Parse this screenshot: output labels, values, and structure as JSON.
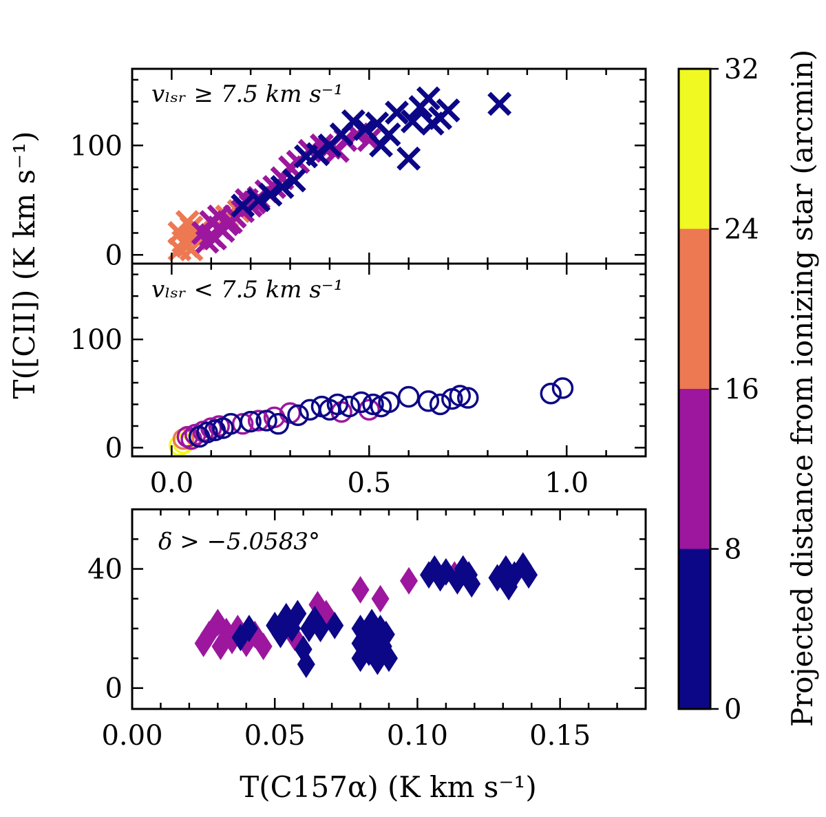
{
  "colors": {
    "bin_0_8": "#0c0786",
    "bin_8_16": "#9c179e",
    "bin_16_24": "#ed7953",
    "bin_24_32": "#f0f921",
    "axis": "#000000"
  },
  "figure": {
    "ylabel": "T([CII]) (K km s⁻¹)",
    "xlabel": "T(C157α) (K km s⁻¹)"
  },
  "colorbar": {
    "label": "Projected distance from ionizing star (arcmin)",
    "ticks": [
      "0",
      "8",
      "16",
      "24",
      "32"
    ],
    "boundaries": [
      0,
      8,
      16,
      24,
      32
    ]
  },
  "chart_data": [
    {
      "type": "scatter",
      "panel": "top",
      "annotation": "vₗₛᵣ ≥ 7.5 km s⁻¹",
      "marker": "x",
      "xlim": [
        -0.1,
        1.2
      ],
      "ylim": [
        -8,
        170
      ],
      "yticks": [
        0,
        100
      ],
      "xtick_labels_shown": false,
      "points": [
        {
          "x": 0.02,
          "y": 20,
          "d": 20
        },
        {
          "x": 0.03,
          "y": 12,
          "d": 20
        },
        {
          "x": 0.04,
          "y": 8,
          "d": 20
        },
        {
          "x": 0.05,
          "y": 25,
          "d": 20
        },
        {
          "x": 0.06,
          "y": 15,
          "d": 20
        },
        {
          "x": 0.04,
          "y": 30,
          "d": 20
        },
        {
          "x": 0.07,
          "y": 22,
          "d": 20
        },
        {
          "x": 0.05,
          "y": 5,
          "d": 20
        },
        {
          "x": 0.14,
          "y": 35,
          "d": 20
        },
        {
          "x": 0.17,
          "y": 40,
          "d": 20
        },
        {
          "x": 0.02,
          "y": 5,
          "d": 20
        },
        {
          "x": 0.08,
          "y": 20,
          "d": 12
        },
        {
          "x": 0.1,
          "y": 18,
          "d": 12
        },
        {
          "x": 0.12,
          "y": 25,
          "d": 12
        },
        {
          "x": 0.14,
          "y": 28,
          "d": 12
        },
        {
          "x": 0.16,
          "y": 35,
          "d": 12
        },
        {
          "x": 0.18,
          "y": 40,
          "d": 12
        },
        {
          "x": 0.2,
          "y": 45,
          "d": 12
        },
        {
          "x": 0.22,
          "y": 52,
          "d": 12
        },
        {
          "x": 0.24,
          "y": 58,
          "d": 12
        },
        {
          "x": 0.26,
          "y": 62,
          "d": 12
        },
        {
          "x": 0.28,
          "y": 70,
          "d": 12
        },
        {
          "x": 0.3,
          "y": 80,
          "d": 12
        },
        {
          "x": 0.32,
          "y": 85,
          "d": 12
        },
        {
          "x": 0.35,
          "y": 95,
          "d": 12
        },
        {
          "x": 0.38,
          "y": 100,
          "d": 12
        },
        {
          "x": 0.4,
          "y": 98,
          "d": 12
        },
        {
          "x": 0.42,
          "y": 95,
          "d": 12
        },
        {
          "x": 0.44,
          "y": 105,
          "d": 12
        },
        {
          "x": 0.47,
          "y": 110,
          "d": 12
        },
        {
          "x": 0.5,
          "y": 105,
          "d": 12
        },
        {
          "x": 0.12,
          "y": 35,
          "d": 12
        },
        {
          "x": 0.15,
          "y": 30,
          "d": 12
        },
        {
          "x": 0.19,
          "y": 50,
          "d": 12
        },
        {
          "x": 0.21,
          "y": 48,
          "d": 12
        },
        {
          "x": 0.1,
          "y": 30,
          "d": 12
        },
        {
          "x": 0.13,
          "y": 22,
          "d": 12
        },
        {
          "x": 0.09,
          "y": 12,
          "d": 12
        },
        {
          "x": 0.11,
          "y": 15,
          "d": 12
        },
        {
          "x": 0.18,
          "y": 45,
          "d": 4
        },
        {
          "x": 0.22,
          "y": 50,
          "d": 4
        },
        {
          "x": 0.25,
          "y": 55,
          "d": 4
        },
        {
          "x": 0.28,
          "y": 62,
          "d": 4
        },
        {
          "x": 0.31,
          "y": 68,
          "d": 4
        },
        {
          "x": 0.34,
          "y": 90,
          "d": 4
        },
        {
          "x": 0.37,
          "y": 92,
          "d": 4
        },
        {
          "x": 0.4,
          "y": 100,
          "d": 4
        },
        {
          "x": 0.43,
          "y": 110,
          "d": 4
        },
        {
          "x": 0.46,
          "y": 122,
          "d": 4
        },
        {
          "x": 0.49,
          "y": 115,
          "d": 4
        },
        {
          "x": 0.52,
          "y": 120,
          "d": 4
        },
        {
          "x": 0.53,
          "y": 100,
          "d": 4
        },
        {
          "x": 0.55,
          "y": 110,
          "d": 4
        },
        {
          "x": 0.57,
          "y": 130,
          "d": 4
        },
        {
          "x": 0.6,
          "y": 88,
          "d": 4
        },
        {
          "x": 0.61,
          "y": 122,
          "d": 4
        },
        {
          "x": 0.63,
          "y": 135,
          "d": 4
        },
        {
          "x": 0.65,
          "y": 143,
          "d": 4
        },
        {
          "x": 0.66,
          "y": 120,
          "d": 4
        },
        {
          "x": 0.68,
          "y": 125,
          "d": 4
        },
        {
          "x": 0.7,
          "y": 132,
          "d": 4
        },
        {
          "x": 0.83,
          "y": 138,
          "d": 4
        }
      ]
    },
    {
      "type": "scatter",
      "panel": "middle",
      "annotation": "vₗₛᵣ < 7.5 km s⁻¹",
      "marker": "o",
      "xlim": [
        -0.1,
        1.2
      ],
      "ylim": [
        -8,
        170
      ],
      "xticks": [
        0.0,
        0.5,
        1.0
      ],
      "xtick_labels": [
        "0.0",
        "0.5",
        "1.0"
      ],
      "yticks": [
        0,
        100
      ],
      "points": [
        {
          "x": 0.02,
          "y": 2,
          "d": 28
        },
        {
          "x": 0.03,
          "y": 4,
          "d": 28
        },
        {
          "x": 0.03,
          "y": 8,
          "d": 20
        },
        {
          "x": 0.04,
          "y": 10,
          "d": 12
        },
        {
          "x": 0.06,
          "y": 12,
          "d": 12
        },
        {
          "x": 0.08,
          "y": 15,
          "d": 12
        },
        {
          "x": 0.1,
          "y": 18,
          "d": 12
        },
        {
          "x": 0.05,
          "y": 8,
          "d": 12
        },
        {
          "x": 0.12,
          "y": 20,
          "d": 12
        },
        {
          "x": 0.18,
          "y": 22,
          "d": 12
        },
        {
          "x": 0.22,
          "y": 25,
          "d": 12
        },
        {
          "x": 0.26,
          "y": 28,
          "d": 12
        },
        {
          "x": 0.3,
          "y": 32,
          "d": 12
        },
        {
          "x": 0.43,
          "y": 33,
          "d": 12
        },
        {
          "x": 0.5,
          "y": 35,
          "d": 12
        },
        {
          "x": 0.07,
          "y": 10,
          "d": 4
        },
        {
          "x": 0.09,
          "y": 14,
          "d": 4
        },
        {
          "x": 0.11,
          "y": 16,
          "d": 4
        },
        {
          "x": 0.13,
          "y": 18,
          "d": 4
        },
        {
          "x": 0.15,
          "y": 22,
          "d": 4
        },
        {
          "x": 0.2,
          "y": 24,
          "d": 4
        },
        {
          "x": 0.24,
          "y": 25,
          "d": 4
        },
        {
          "x": 0.27,
          "y": 22,
          "d": 4
        },
        {
          "x": 0.32,
          "y": 30,
          "d": 4
        },
        {
          "x": 0.35,
          "y": 35,
          "d": 4
        },
        {
          "x": 0.38,
          "y": 38,
          "d": 4
        },
        {
          "x": 0.4,
          "y": 35,
          "d": 4
        },
        {
          "x": 0.42,
          "y": 40,
          "d": 4
        },
        {
          "x": 0.45,
          "y": 38,
          "d": 4
        },
        {
          "x": 0.48,
          "y": 42,
          "d": 4
        },
        {
          "x": 0.51,
          "y": 40,
          "d": 4
        },
        {
          "x": 0.53,
          "y": 38,
          "d": 4
        },
        {
          "x": 0.55,
          "y": 42,
          "d": 4
        },
        {
          "x": 0.6,
          "y": 47,
          "d": 4
        },
        {
          "x": 0.65,
          "y": 43,
          "d": 4
        },
        {
          "x": 0.68,
          "y": 40,
          "d": 4
        },
        {
          "x": 0.71,
          "y": 45,
          "d": 4
        },
        {
          "x": 0.73,
          "y": 48,
          "d": 4
        },
        {
          "x": 0.75,
          "y": 46,
          "d": 4
        },
        {
          "x": 0.96,
          "y": 50,
          "d": 4
        },
        {
          "x": 0.99,
          "y": 55,
          "d": 4
        }
      ]
    },
    {
      "type": "scatter",
      "panel": "bottom",
      "annotation": "δ > −5.0583°",
      "marker": "diamond",
      "xlim": [
        0.0,
        0.18
      ],
      "ylim": [
        -7,
        60
      ],
      "xticks": [
        0.0,
        0.05,
        0.1,
        0.15
      ],
      "xtick_labels": [
        "0.00",
        "0.05",
        "0.10",
        "0.15"
      ],
      "yticks": [
        0,
        40
      ],
      "points": [
        {
          "x": 0.025,
          "y": 15,
          "d": 12
        },
        {
          "x": 0.027,
          "y": 18,
          "d": 12
        },
        {
          "x": 0.03,
          "y": 22,
          "d": 12
        },
        {
          "x": 0.031,
          "y": 14,
          "d": 12
        },
        {
          "x": 0.033,
          "y": 19,
          "d": 12
        },
        {
          "x": 0.035,
          "y": 16,
          "d": 12
        },
        {
          "x": 0.037,
          "y": 20,
          "d": 12
        },
        {
          "x": 0.04,
          "y": 15,
          "d": 12
        },
        {
          "x": 0.043,
          "y": 18,
          "d": 12
        },
        {
          "x": 0.046,
          "y": 14,
          "d": 12
        },
        {
          "x": 0.057,
          "y": 17,
          "d": 12
        },
        {
          "x": 0.065,
          "y": 28,
          "d": 12
        },
        {
          "x": 0.068,
          "y": 25,
          "d": 12
        },
        {
          "x": 0.08,
          "y": 33,
          "d": 12
        },
        {
          "x": 0.087,
          "y": 30,
          "d": 12
        },
        {
          "x": 0.097,
          "y": 36,
          "d": 12
        },
        {
          "x": 0.113,
          "y": 38,
          "d": 12
        },
        {
          "x": 0.038,
          "y": 17,
          "d": 4
        },
        {
          "x": 0.041,
          "y": 20,
          "d": 4
        },
        {
          "x": 0.05,
          "y": 21,
          "d": 4
        },
        {
          "x": 0.052,
          "y": 18,
          "d": 4
        },
        {
          "x": 0.054,
          "y": 24,
          "d": 4
        },
        {
          "x": 0.056,
          "y": 20,
          "d": 4
        },
        {
          "x": 0.058,
          "y": 25,
          "d": 4
        },
        {
          "x": 0.06,
          "y": 13,
          "d": 4
        },
        {
          "x": 0.061,
          "y": 8,
          "d": 4
        },
        {
          "x": 0.062,
          "y": 20,
          "d": 4
        },
        {
          "x": 0.064,
          "y": 23,
          "d": 4
        },
        {
          "x": 0.066,
          "y": 20,
          "d": 4
        },
        {
          "x": 0.071,
          "y": 21,
          "d": 4
        },
        {
          "x": 0.08,
          "y": 20,
          "d": 4
        },
        {
          "x": 0.08,
          "y": 15,
          "d": 4
        },
        {
          "x": 0.08,
          "y": 10,
          "d": 4
        },
        {
          "x": 0.082,
          "y": 18,
          "d": 4
        },
        {
          "x": 0.083,
          "y": 12,
          "d": 4
        },
        {
          "x": 0.084,
          "y": 22,
          "d": 4
        },
        {
          "x": 0.085,
          "y": 16,
          "d": 4
        },
        {
          "x": 0.086,
          "y": 9,
          "d": 4
        },
        {
          "x": 0.087,
          "y": 20,
          "d": 4
        },
        {
          "x": 0.088,
          "y": 14,
          "d": 4
        },
        {
          "x": 0.089,
          "y": 18,
          "d": 4
        },
        {
          "x": 0.09,
          "y": 10,
          "d": 4
        },
        {
          "x": 0.104,
          "y": 38,
          "d": 4
        },
        {
          "x": 0.106,
          "y": 40,
          "d": 4
        },
        {
          "x": 0.108,
          "y": 37,
          "d": 4
        },
        {
          "x": 0.11,
          "y": 39,
          "d": 4
        },
        {
          "x": 0.114,
          "y": 36,
          "d": 4
        },
        {
          "x": 0.116,
          "y": 40,
          "d": 4
        },
        {
          "x": 0.118,
          "y": 38,
          "d": 4
        },
        {
          "x": 0.119,
          "y": 35,
          "d": 4
        },
        {
          "x": 0.128,
          "y": 37,
          "d": 4
        },
        {
          "x": 0.131,
          "y": 40,
          "d": 4
        },
        {
          "x": 0.132,
          "y": 34,
          "d": 4
        },
        {
          "x": 0.134,
          "y": 38,
          "d": 4
        },
        {
          "x": 0.137,
          "y": 41,
          "d": 4
        },
        {
          "x": 0.139,
          "y": 38,
          "d": 4
        }
      ]
    }
  ]
}
